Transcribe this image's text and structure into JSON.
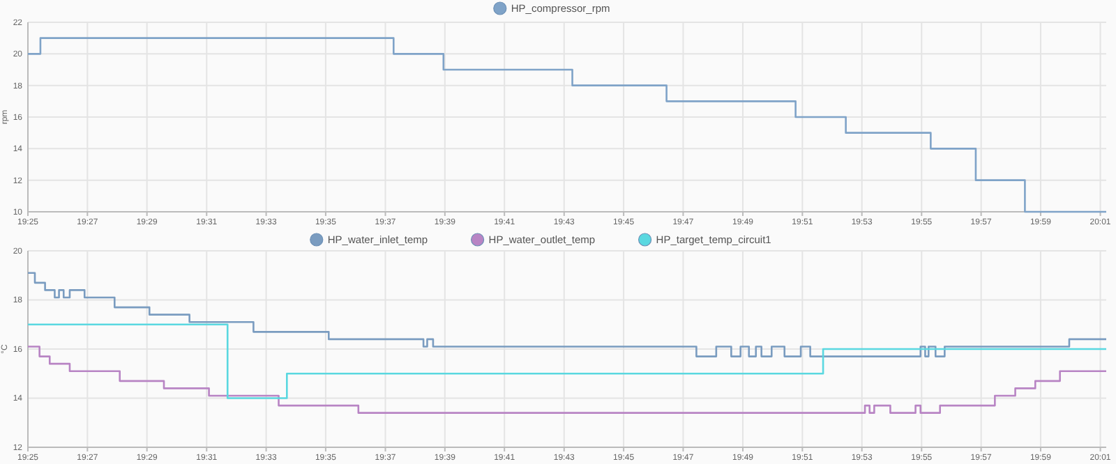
{
  "chart_data": [
    {
      "type": "step",
      "ylabel": "rpm",
      "xlim": [
        19.4167,
        20.02
      ],
      "ylim": [
        10,
        22
      ],
      "yticks": [
        10,
        12,
        14,
        16,
        18,
        20,
        22
      ],
      "xticks": [
        {
          "value": 19.4167,
          "label": "19:25"
        },
        {
          "value": 19.45,
          "label": "19:27"
        },
        {
          "value": 19.4833,
          "label": "19:29"
        },
        {
          "value": 19.5167,
          "label": "19:31"
        },
        {
          "value": 19.55,
          "label": "19:33"
        },
        {
          "value": 19.5833,
          "label": "19:35"
        },
        {
          "value": 19.6167,
          "label": "19:37"
        },
        {
          "value": 19.65,
          "label": "19:39"
        },
        {
          "value": 19.6833,
          "label": "19:41"
        },
        {
          "value": 19.7167,
          "label": "19:43"
        },
        {
          "value": 19.75,
          "label": "19:45"
        },
        {
          "value": 19.7833,
          "label": "19:47"
        },
        {
          "value": 19.8167,
          "label": "19:49"
        },
        {
          "value": 19.85,
          "label": "19:51"
        },
        {
          "value": 19.8833,
          "label": "19:53"
        },
        {
          "value": 19.9167,
          "label": "19:55"
        },
        {
          "value": 19.95,
          "label": "19:57"
        },
        {
          "value": 19.9833,
          "label": "19:59"
        },
        {
          "value": 20.0167,
          "label": "20:01"
        }
      ],
      "grid": true,
      "legend": "top",
      "marker": "none",
      "line_style": "solid",
      "series": [
        {
          "name": "HP_compressor_rpm",
          "color": "#7fa3c8",
          "x": [
            19.4167,
            19.4237,
            19.6213,
            19.6492,
            19.7213,
            19.774,
            19.8462,
            19.8743,
            19.9218,
            19.947,
            19.9745,
            20.02
          ],
          "values": [
            20,
            21,
            20,
            19,
            18,
            17,
            16,
            15,
            14,
            12,
            10,
            10
          ]
        }
      ]
    },
    {
      "type": "step",
      "ylabel": "°C",
      "xlim": [
        19.4167,
        20.02
      ],
      "ylim": [
        12,
        20
      ],
      "yticks": [
        12,
        14,
        16,
        18,
        20
      ],
      "xticks": [
        {
          "value": 19.4167,
          "label": "19:25"
        },
        {
          "value": 19.45,
          "label": "19:27"
        },
        {
          "value": 19.4833,
          "label": "19:29"
        },
        {
          "value": 19.5167,
          "label": "19:31"
        },
        {
          "value": 19.55,
          "label": "19:33"
        },
        {
          "value": 19.5833,
          "label": "19:35"
        },
        {
          "value": 19.6167,
          "label": "19:37"
        },
        {
          "value": 19.65,
          "label": "19:39"
        },
        {
          "value": 19.6833,
          "label": "19:41"
        },
        {
          "value": 19.7167,
          "label": "19:43"
        },
        {
          "value": 19.75,
          "label": "19:45"
        },
        {
          "value": 19.7833,
          "label": "19:47"
        },
        {
          "value": 19.8167,
          "label": "19:49"
        },
        {
          "value": 19.85,
          "label": "19:51"
        },
        {
          "value": 19.8833,
          "label": "19:53"
        },
        {
          "value": 19.9167,
          "label": "19:55"
        },
        {
          "value": 19.95,
          "label": "19:57"
        },
        {
          "value": 19.9833,
          "label": "19:59"
        },
        {
          "value": 20.0167,
          "label": "20:01"
        }
      ],
      "grid": true,
      "legend": "top",
      "marker": "none",
      "line_style": "solid",
      "series": [
        {
          "name": "HP_water_inlet_temp",
          "color": "#7a9cc0",
          "x": [
            19.4167,
            19.4206,
            19.4263,
            19.4317,
            19.4341,
            19.4367,
            19.4401,
            19.4484,
            19.4652,
            19.4847,
            19.5071,
            19.5429,
            19.585,
            19.638,
            19.6401,
            19.6434,
            19.7907,
            19.8018,
            19.8102,
            19.8154,
            19.8201,
            19.824,
            19.8271,
            19.8328,
            19.84,
            19.8491,
            19.8544,
            19.9161,
            19.9187,
            19.9206,
            19.9245,
            19.9296,
            19.9993,
            20.02
          ],
          "values": [
            19.1,
            18.7,
            18.4,
            18.1,
            18.4,
            18.1,
            18.4,
            18.1,
            17.7,
            17.4,
            17.1,
            16.7,
            16.4,
            16.1,
            16.4,
            16.1,
            15.7,
            16.1,
            15.7,
            16.1,
            15.7,
            16.1,
            15.7,
            16.1,
            15.7,
            16.1,
            15.7,
            16.1,
            15.7,
            16.1,
            15.7,
            16.1,
            16.4,
            16.4
          ]
        },
        {
          "name": "HP_water_outlet_temp",
          "color": "#b884c4",
          "x": [
            19.4167,
            19.4232,
            19.4289,
            19.4401,
            19.4681,
            19.4928,
            19.518,
            19.557,
            19.6016,
            19.885,
            19.8876,
            19.8902,
            19.8992,
            19.9133,
            19.9161,
            19.927,
            19.9577,
            19.9691,
            19.9803,
            19.9941,
            20.02
          ],
          "values": [
            16.1,
            15.7,
            15.4,
            15.1,
            14.7,
            14.4,
            14.1,
            13.7,
            13.4,
            13.7,
            13.4,
            13.7,
            13.4,
            13.7,
            13.4,
            13.7,
            14.1,
            14.4,
            14.7,
            15.1,
            15.1
          ]
        },
        {
          "name": "HP_target_temp_circuit1",
          "color": "#5ad8e0",
          "x": [
            19.4167,
            19.5284,
            19.5616,
            19.8616,
            20.02
          ],
          "values": [
            17,
            14,
            15,
            16,
            16
          ]
        }
      ]
    }
  ]
}
